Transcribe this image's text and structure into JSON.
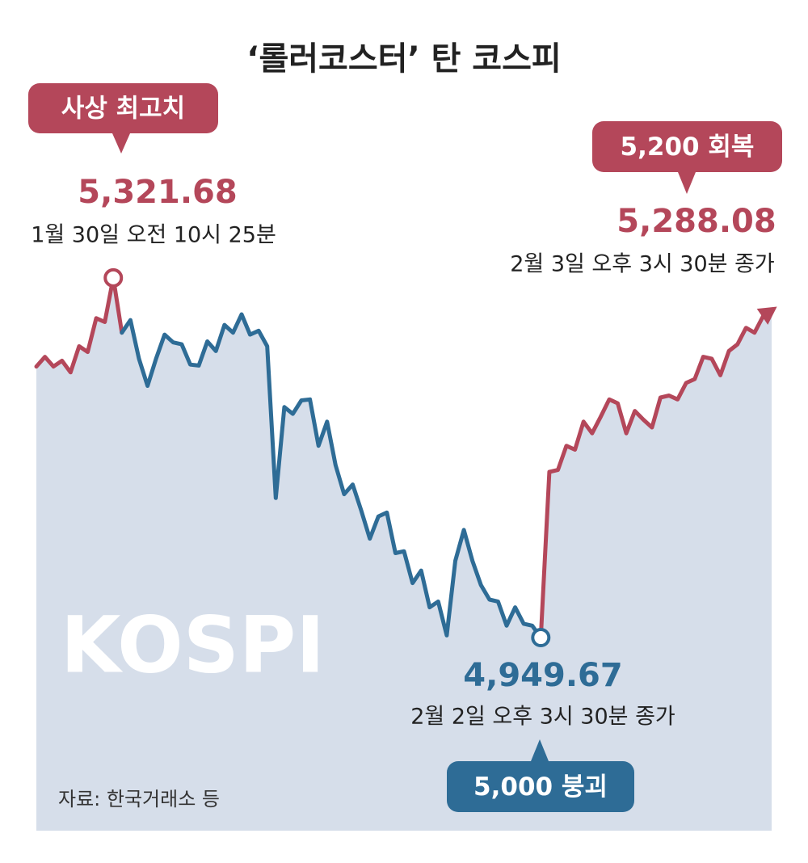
{
  "chart_data": {
    "type": "line",
    "title": "‘롤러코스터’ 탄 코스피",
    "watermark": "KOSPI",
    "source": "자료: 한국거래소 등",
    "annotations": [
      {
        "badge": "사상 최고치",
        "time": "1월 30일 오전 10시 25분"
      },
      {
        "badge": "5,000 붕괴",
        "time": "2월 2일 오후 3시 30분 종가"
      },
      {
        "badge": "5,200 회복",
        "time": "2월 3일 오후 3시 30분 종가"
      }
    ],
    "categories": [
      null,
      null,
      null,
      null,
      null,
      null,
      null,
      null,
      null,
      null,
      null,
      null,
      null,
      null,
      null,
      null,
      null,
      null,
      null,
      null,
      null,
      null,
      null,
      null,
      null,
      null,
      null,
      null,
      null,
      null,
      null,
      null,
      null,
      null,
      null,
      null,
      null,
      null,
      null,
      null,
      null,
      null,
      null,
      null,
      null,
      null,
      null,
      null,
      null,
      null,
      null,
      null,
      null,
      null,
      null,
      null,
      null,
      null,
      null,
      null,
      null,
      null,
      null,
      null,
      null,
      null,
      null,
      null,
      null,
      null,
      null,
      null,
      null,
      null,
      null,
      null,
      null,
      null,
      null,
      null,
      null,
      null,
      null,
      null,
      null,
      null,
      null
    ],
    "ylim": [
      4750,
      5355
    ],
    "area_color": "#d6deea",
    "series": [
      {
        "color": "#b4475a",
        "values": [
          5230,
          5240,
          5230,
          5236,
          5224,
          5251,
          5245,
          5280,
          5276,
          5321.68,
          5265,
          null,
          null,
          null,
          null,
          null,
          null,
          null,
          null,
          null,
          null,
          null,
          null,
          null,
          null,
          null,
          null,
          null,
          null,
          null,
          null,
          null,
          null,
          null,
          null,
          null,
          null,
          null,
          null,
          null,
          null,
          null,
          null,
          null,
          null,
          null,
          null,
          null,
          null,
          null,
          null,
          null,
          null,
          null,
          null,
          null,
          null,
          null,
          null,
          null,
          null,
          null,
          null,
          null,
          null,
          null,
          null,
          null,
          null,
          null,
          null,
          null,
          null,
          null,
          null,
          null,
          null,
          null,
          null,
          null,
          null,
          null,
          null,
          null,
          null,
          null,
          null
        ],
        "value_labels": [
          null,
          null,
          null,
          null,
          null,
          null,
          null,
          null,
          null,
          "5,321.68",
          null,
          null,
          null,
          null,
          null,
          null,
          null,
          null,
          null,
          null,
          null,
          null,
          null,
          null,
          null,
          null,
          null,
          null,
          null,
          null,
          null,
          null,
          null,
          null,
          null,
          null,
          null,
          null,
          null,
          null,
          null,
          null,
          null,
          null,
          null,
          null,
          null,
          null,
          null,
          null,
          null,
          null,
          null,
          null,
          null,
          null,
          null,
          null,
          null,
          null,
          null,
          null,
          null,
          null,
          null,
          null,
          null,
          null,
          null,
          null,
          null,
          null,
          null,
          null,
          null,
          null,
          null,
          null,
          null,
          null,
          null,
          null,
          null,
          null,
          null,
          null,
          null
        ]
      },
      {
        "color": "#2e6c96",
        "values": [
          null,
          null,
          null,
          null,
          null,
          null,
          null,
          null,
          null,
          null,
          5265,
          5278,
          5238,
          5210,
          5238,
          5263,
          5255,
          5253,
          5232,
          5231,
          5256,
          5246,
          5273,
          5265,
          5284,
          5263,
          5267,
          5251,
          5094,
          5188,
          5181,
          5195,
          5196,
          5148,
          5173,
          5128,
          5098,
          5108,
          5081,
          5052,
          5075,
          5079,
          5037,
          5039,
          5006,
          5019,
          4981,
          4987,
          4952,
          5029,
          5061,
          5029,
          5004,
          4989,
          4987,
          4962,
          4981,
          4964,
          4962,
          4949.67,
          null,
          null,
          null,
          null,
          null,
          null,
          null,
          null,
          null,
          null,
          null,
          null,
          null,
          null,
          null,
          null,
          null,
          null,
          null,
          null,
          null,
          null,
          null,
          null,
          null,
          null,
          null
        ],
        "value_labels": [
          null,
          null,
          null,
          null,
          null,
          null,
          null,
          null,
          null,
          null,
          null,
          null,
          null,
          null,
          null,
          null,
          null,
          null,
          null,
          null,
          null,
          null,
          null,
          null,
          null,
          null,
          null,
          null,
          null,
          null,
          null,
          null,
          null,
          null,
          null,
          null,
          null,
          null,
          null,
          null,
          null,
          null,
          null,
          null,
          null,
          null,
          null,
          null,
          null,
          null,
          null,
          null,
          null,
          null,
          null,
          null,
          null,
          null,
          null,
          "4,949.67",
          null,
          null,
          null,
          null,
          null,
          null,
          null,
          null,
          null,
          null,
          null,
          null,
          null,
          null,
          null,
          null,
          null,
          null,
          null,
          null,
          null,
          null,
          null,
          null,
          null,
          null,
          null
        ]
      },
      {
        "color": "#b4475a",
        "values": [
          null,
          null,
          null,
          null,
          null,
          null,
          null,
          null,
          null,
          null,
          null,
          null,
          null,
          null,
          null,
          null,
          null,
          null,
          null,
          null,
          null,
          null,
          null,
          null,
          null,
          null,
          null,
          null,
          null,
          null,
          null,
          null,
          null,
          null,
          null,
          null,
          null,
          null,
          null,
          null,
          null,
          null,
          null,
          null,
          null,
          null,
          null,
          null,
          null,
          null,
          null,
          null,
          null,
          null,
          null,
          null,
          null,
          null,
          null,
          4949.67,
          5121,
          5123,
          5148,
          5144,
          5173,
          5161,
          5178,
          5196,
          5192,
          5161,
          5184,
          5175,
          5167,
          5198,
          5200,
          5196,
          5213,
          5217,
          5240,
          5238,
          5221,
          5246,
          5253,
          5270,
          5265,
          5282,
          5288.08
        ],
        "value_labels": [
          null,
          null,
          null,
          null,
          null,
          null,
          null,
          null,
          null,
          null,
          null,
          null,
          null,
          null,
          null,
          null,
          null,
          null,
          null,
          null,
          null,
          null,
          null,
          null,
          null,
          null,
          null,
          null,
          null,
          null,
          null,
          null,
          null,
          null,
          null,
          null,
          null,
          null,
          null,
          null,
          null,
          null,
          null,
          null,
          null,
          null,
          null,
          null,
          null,
          null,
          null,
          null,
          null,
          null,
          null,
          null,
          null,
          null,
          null,
          null,
          null,
          null,
          null,
          null,
          null,
          null,
          null,
          null,
          null,
          null,
          null,
          null,
          null,
          null,
          null,
          null,
          null,
          null,
          null,
          null,
          null,
          null,
          null,
          null,
          null,
          null,
          "5,288.08"
        ]
      }
    ]
  }
}
